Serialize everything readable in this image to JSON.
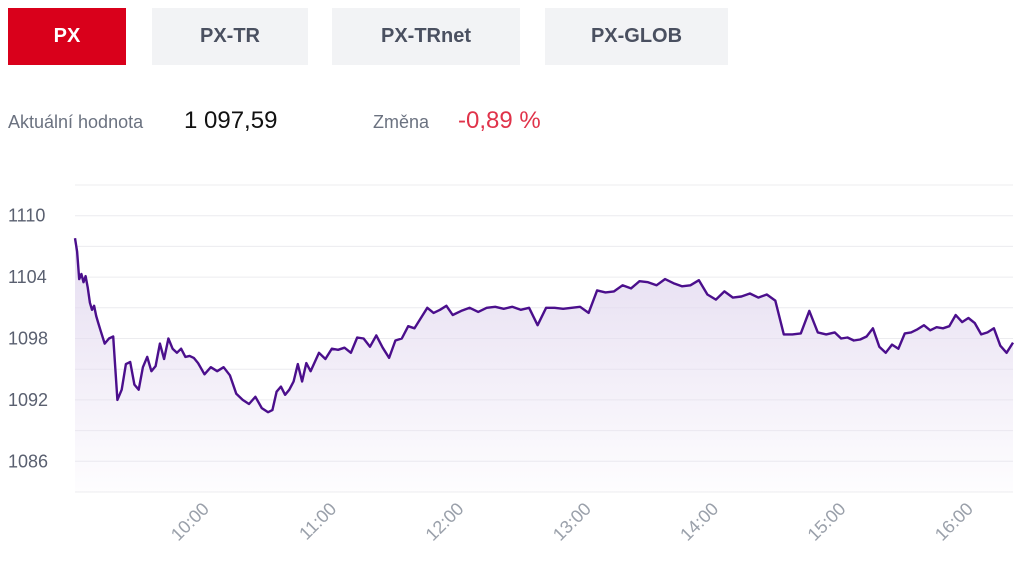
{
  "tabs": [
    {
      "label": "PX",
      "active": true
    },
    {
      "label": "PX-TR",
      "active": false
    },
    {
      "label": "PX-TRnet",
      "active": false
    },
    {
      "label": "PX-GLOB",
      "active": false
    }
  ],
  "stats": {
    "current_label": "Aktuální hodnota",
    "current_value": "1 097,59",
    "change_label": "Změna",
    "change_value": "-0,89 %"
  },
  "colors": {
    "accent": "#d9001b",
    "line": "#4b0f8c",
    "fill": "#ece6f4",
    "negative": "#e0334a"
  },
  "chart_data": {
    "type": "area",
    "title": "",
    "xlabel": "",
    "ylabel": "",
    "ylim": [
      1083,
      1113
    ],
    "xlim": [
      "09:02",
      "16:24"
    ],
    "grid": true,
    "y_ticks": [
      1086,
      1092,
      1098,
      1104,
      1110
    ],
    "x_ticks": [
      "10:00",
      "11:00",
      "12:00",
      "13:00",
      "14:00",
      "15:00",
      "16:00"
    ],
    "series": [
      {
        "x": [
          "09:02",
          "09:03",
          "09:04",
          "09:05",
          "09:06",
          "09:07",
          "09:08",
          "09:09",
          "09:10",
          "09:11",
          "09:12",
          "09:13",
          "09:14",
          "09:16",
          "09:18",
          "09:20",
          "09:22",
          "09:24",
          "09:26",
          "09:28",
          "09:30",
          "09:32",
          "09:34",
          "09:36",
          "09:38",
          "09:40",
          "09:42",
          "09:44",
          "09:46",
          "09:48",
          "09:50",
          "09:52",
          "09:54",
          "09:56",
          "09:58",
          "10:00",
          "10:03",
          "10:06",
          "10:09",
          "10:12",
          "10:15",
          "10:18",
          "10:21",
          "10:24",
          "10:27",
          "10:30",
          "10:33",
          "10:35",
          "10:37",
          "10:39",
          "10:41",
          "10:43",
          "10:45",
          "10:47",
          "10:49",
          "10:51",
          "10:53",
          "10:55",
          "10:57",
          "11:00",
          "11:03",
          "11:06",
          "11:09",
          "11:12",
          "11:15",
          "11:18",
          "11:21",
          "11:24",
          "11:27",
          "11:30",
          "11:33",
          "11:36",
          "11:39",
          "11:42",
          "11:45",
          "11:48",
          "11:51",
          "11:54",
          "11:57",
          "12:00",
          "12:04",
          "12:08",
          "12:12",
          "12:16",
          "12:20",
          "12:24",
          "12:28",
          "12:32",
          "12:36",
          "12:40",
          "12:44",
          "12:48",
          "12:52",
          "12:56",
          "13:00",
          "13:04",
          "13:08",
          "13:12",
          "13:16",
          "13:20",
          "13:24",
          "13:28",
          "13:32",
          "13:36",
          "13:40",
          "13:44",
          "13:48",
          "13:52",
          "13:56",
          "14:00",
          "14:04",
          "14:08",
          "14:12",
          "14:16",
          "14:20",
          "14:24",
          "14:28",
          "14:32",
          "14:36",
          "14:40",
          "14:44",
          "14:48",
          "14:52",
          "14:56",
          "15:00",
          "15:03",
          "15:06",
          "15:09",
          "15:12",
          "15:15",
          "15:18",
          "15:21",
          "15:24",
          "15:27",
          "15:30",
          "15:33",
          "15:36",
          "15:39",
          "15:42",
          "15:45",
          "15:48",
          "15:51",
          "15:54",
          "15:57",
          "16:00",
          "16:03",
          "16:06",
          "16:09",
          "16:12",
          "16:15",
          "16:18",
          "16:21",
          "16:24"
        ],
        "y": [
          1107.8,
          1106.5,
          1103.8,
          1104.3,
          1103.5,
          1104.1,
          1103.0,
          1101.5,
          1100.8,
          1101.2,
          1100.2,
          1099.5,
          1098.8,
          1097.5,
          1098.0,
          1098.2,
          1092.0,
          1093.0,
          1095.5,
          1095.7,
          1093.5,
          1093.0,
          1095.2,
          1096.2,
          1094.8,
          1095.3,
          1097.5,
          1096.0,
          1098.0,
          1097.0,
          1096.6,
          1097.0,
          1096.2,
          1096.3,
          1096.1,
          1095.6,
          1094.5,
          1095.2,
          1094.8,
          1095.2,
          1094.4,
          1092.6,
          1092.0,
          1091.6,
          1092.3,
          1091.2,
          1090.8,
          1091.0,
          1092.8,
          1093.3,
          1092.5,
          1093.0,
          1093.8,
          1095.5,
          1093.8,
          1095.6,
          1094.8,
          1095.7,
          1096.6,
          1096.0,
          1097.0,
          1096.9,
          1097.1,
          1096.6,
          1098.1,
          1098.0,
          1097.2,
          1098.3,
          1097.1,
          1096.1,
          1097.8,
          1098.0,
          1099.2,
          1099.0,
          1100.0,
          1101.0,
          1100.5,
          1100.8,
          1101.2,
          1100.3,
          1100.7,
          1101.0,
          1100.6,
          1101.0,
          1101.1,
          1100.9,
          1101.1,
          1100.8,
          1101.0,
          1099.3,
          1101.0,
          1101.0,
          1100.9,
          1101.0,
          1101.1,
          1100.5,
          1102.7,
          1102.5,
          1102.6,
          1103.2,
          1102.9,
          1103.6,
          1103.5,
          1103.2,
          1103.8,
          1103.4,
          1103.1,
          1103.2,
          1103.7,
          1102.3,
          1101.8,
          1102.6,
          1102.0,
          1102.1,
          1102.4,
          1102.0,
          1102.3,
          1101.7,
          1098.4,
          1098.4,
          1098.5,
          1100.7,
          1098.6,
          1098.4,
          1098.6,
          1098.0,
          1098.1,
          1097.8,
          1097.9,
          1098.2,
          1099.0,
          1097.2,
          1096.6,
          1097.4,
          1097.0,
          1098.5,
          1098.6,
          1098.9,
          1099.3,
          1098.8,
          1099.1,
          1099.0,
          1099.2,
          1100.3,
          1099.6,
          1100.0,
          1099.5,
          1098.4,
          1098.6,
          1099.0,
          1097.3,
          1096.6,
          1097.6
        ]
      }
    ]
  }
}
